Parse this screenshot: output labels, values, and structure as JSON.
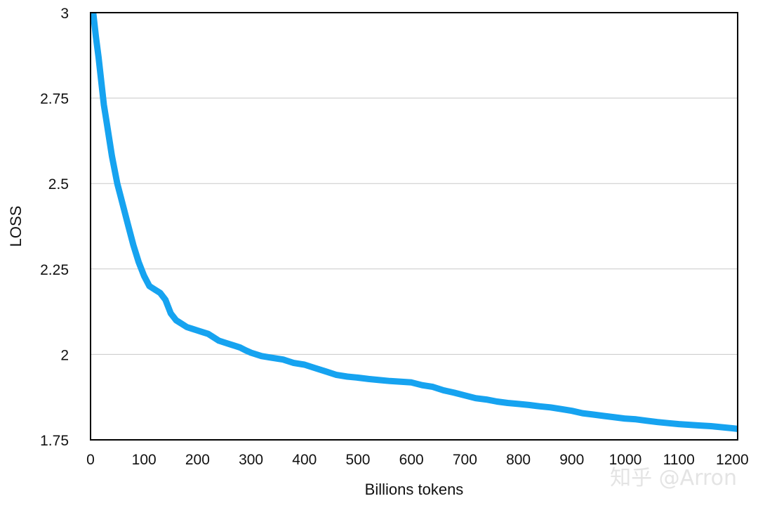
{
  "chart_data": {
    "type": "line",
    "title": "",
    "xlabel": "Billions tokens",
    "ylabel": "LOSS",
    "xlim": [
      0,
      1210
    ],
    "ylim": [
      1.75,
      3
    ],
    "x_ticks": [
      0,
      100,
      200,
      300,
      400,
      500,
      600,
      700,
      800,
      900,
      1000,
      1100,
      1200
    ],
    "x_tick_labels": [
      "0",
      "100",
      "200",
      "300",
      "400",
      "500",
      "600",
      "700",
      "800",
      "900",
      "1000",
      "1100",
      "1200"
    ],
    "y_ticks": [
      1.75,
      2,
      2.25,
      2.5,
      2.75,
      3
    ],
    "y_tick_labels": [
      "1.75",
      "2",
      "2.25",
      "2.5",
      "2.75",
      "3"
    ],
    "grid": "horizontal",
    "line_color": "#16a3f0",
    "series": [
      {
        "x": [
          5,
          10,
          15,
          20,
          25,
          30,
          35,
          40,
          45,
          50,
          55,
          60,
          70,
          80,
          90,
          100,
          110,
          120,
          130,
          140,
          150,
          160,
          170,
          180,
          190,
          200,
          210,
          220,
          230,
          240,
          250,
          260,
          270,
          280,
          290,
          300,
          320,
          340,
          360,
          380,
          400,
          420,
          440,
          460,
          480,
          500,
          520,
          540,
          560,
          580,
          600,
          620,
          640,
          660,
          680,
          700,
          720,
          740,
          760,
          780,
          800,
          820,
          840,
          860,
          880,
          900,
          920,
          940,
          960,
          980,
          1000,
          1020,
          1040,
          1060,
          1080,
          1100,
          1120,
          1140,
          1160,
          1180,
          1200,
          1210
        ],
        "y": [
          3.0,
          2.93,
          2.87,
          2.8,
          2.73,
          2.68,
          2.63,
          2.58,
          2.54,
          2.5,
          2.47,
          2.44,
          2.38,
          2.32,
          2.27,
          2.23,
          2.2,
          2.19,
          2.18,
          2.16,
          2.12,
          2.1,
          2.09,
          2.08,
          2.075,
          2.07,
          2.065,
          2.06,
          2.05,
          2.04,
          2.035,
          2.03,
          2.025,
          2.02,
          2.012,
          2.005,
          1.995,
          1.99,
          1.985,
          1.975,
          1.97,
          1.96,
          1.95,
          1.94,
          1.935,
          1.932,
          1.928,
          1.925,
          1.922,
          1.92,
          1.918,
          1.91,
          1.905,
          1.895,
          1.888,
          1.88,
          1.872,
          1.868,
          1.862,
          1.858,
          1.855,
          1.852,
          1.848,
          1.845,
          1.84,
          1.835,
          1.828,
          1.824,
          1.82,
          1.816,
          1.812,
          1.81,
          1.806,
          1.802,
          1.799,
          1.796,
          1.794,
          1.792,
          1.79,
          1.787,
          1.784,
          1.782
        ]
      }
    ]
  },
  "watermark": "知乎 @Arron"
}
